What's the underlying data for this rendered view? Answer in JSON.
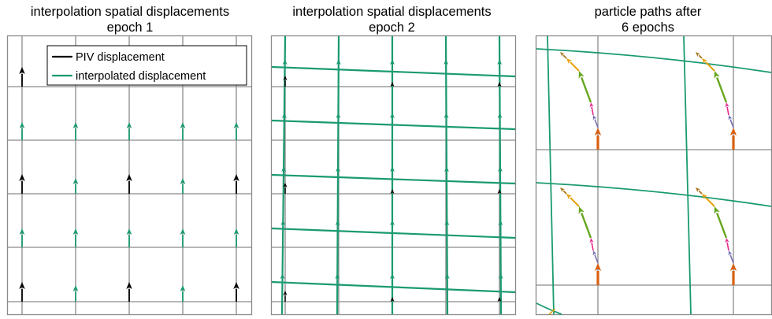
{
  "colors": {
    "grid": "#8a8a8a",
    "piv": "#000000",
    "interp": "#1a9a72",
    "path_orange": "#d9600f",
    "path_purple": "#7570b3",
    "path_pink": "#e7298a",
    "path_green": "#66a61e",
    "path_yellow": "#e6a008",
    "path_brown": "#a6761d"
  },
  "panels": [
    {
      "title_line1": "interpolation spatial displacements",
      "title_line2": "epoch 1"
    },
    {
      "title_line1": "interpolation spatial displacements",
      "title_line2": "epoch 2"
    },
    {
      "title_line1": "particle paths after",
      "title_line2": "6 epochs"
    }
  ],
  "legend": {
    "piv": "PIV displacement",
    "interp": "interpolated displacement"
  }
}
